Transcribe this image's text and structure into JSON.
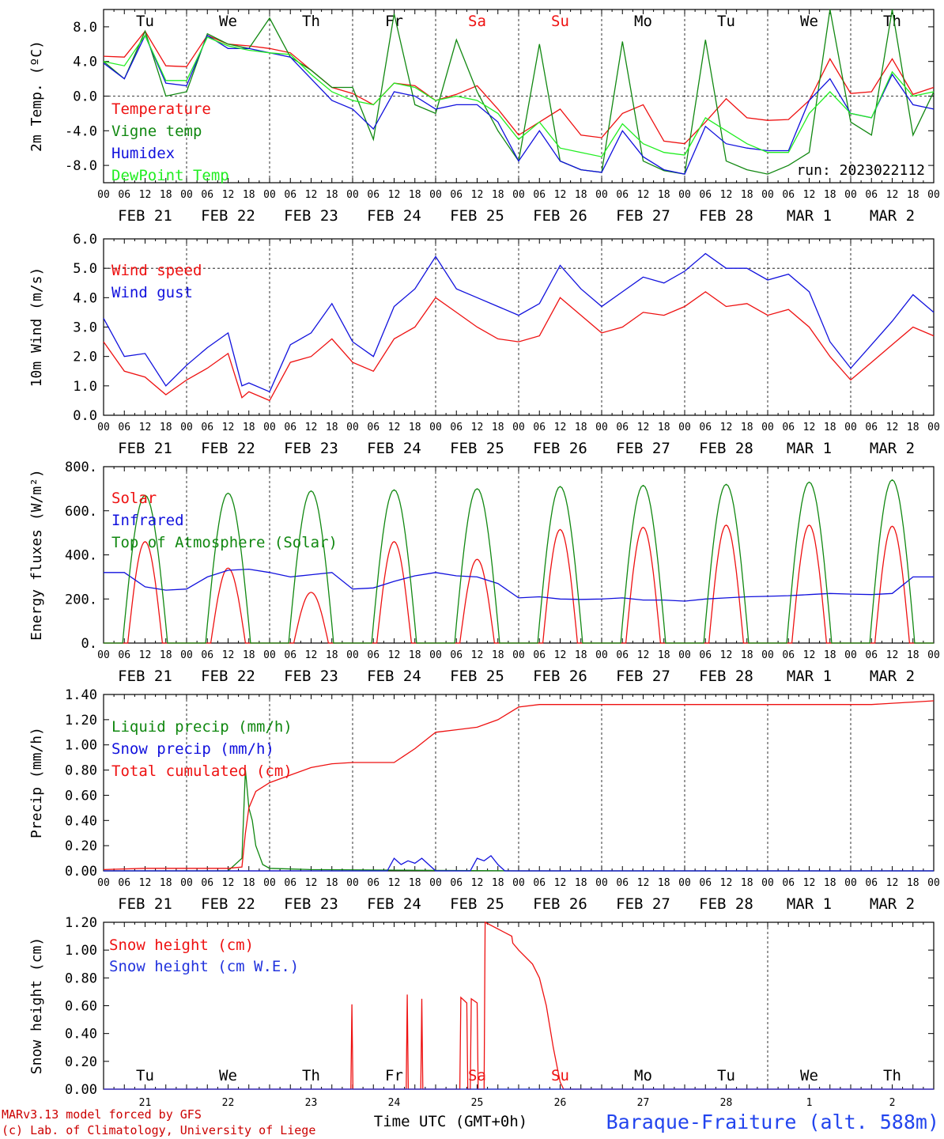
{
  "colors": {
    "temperature": "#ee1111",
    "vigne": "#118811",
    "humidex": "#1111dd",
    "dewpoint": "#22ee22",
    "snow_we": "#2233dd",
    "station": "#2244ee",
    "weekend": "#ee1111",
    "credit": "#cc0000"
  },
  "days": {
    "weekdays": [
      "Tu",
      "We",
      "Th",
      "Fr",
      "Sa",
      "Su",
      "Mo",
      "Tu",
      "We",
      "Th"
    ],
    "weekend_flags": [
      false,
      false,
      false,
      false,
      true,
      true,
      false,
      false,
      false,
      false
    ],
    "dates": [
      "FEB 21",
      "FEB 22",
      "FEB 23",
      "FEB 24",
      "FEB 25",
      "FEB 26",
      "FEB 27",
      "FEB 28",
      "MAR  1",
      "MAR  2"
    ],
    "day_numbers": [
      "21",
      "22",
      "23",
      "24",
      "25",
      "26",
      "27",
      "28",
      "1",
      "2"
    ],
    "hour_ticks": [
      "00",
      "06",
      "12",
      "18"
    ],
    "final_tick": "00"
  },
  "footer": {
    "credit_line1": "MARv3.13 model forced by GFS",
    "credit_line2": "(c) Lab. of Climatology, University of Liege",
    "time_label": "Time UTC (GMT+0h)",
    "station": "Baraque-Fraiture (alt. 588m)"
  },
  "chart_data": [
    {
      "type": "line",
      "x_unit": "hours since FEB 21 00 UTC",
      "ylabel": "2m Temp. (ºC)",
      "ylim": [
        -10,
        10
      ],
      "yticks": [
        -8,
        -4,
        0,
        4,
        8
      ],
      "ytick_labels": [
        "-8.0",
        "-4.0",
        "0.0",
        "4.0",
        "8.0"
      ],
      "reference_line": 0,
      "annotation": "run: 2023022112",
      "series": [
        {
          "name": "Temperature",
          "color": "#ee1111",
          "x": [
            0,
            6,
            12,
            18,
            24,
            30,
            36,
            42,
            48,
            54,
            60,
            66,
            72,
            78,
            84,
            90,
            96,
            102,
            108,
            114,
            120,
            126,
            132,
            138,
            144,
            150,
            156,
            162,
            168,
            174,
            180,
            186,
            192,
            198,
            204,
            210,
            216,
            222,
            228,
            234,
            240
          ],
          "y": [
            4.6,
            4.5,
            7.5,
            3.5,
            3.4,
            7.0,
            6.0,
            5.8,
            5.5,
            5.0,
            3.0,
            1.0,
            0.3,
            -1.0,
            1.5,
            1.2,
            -0.5,
            0.2,
            1.2,
            -1.5,
            -4.5,
            -3.0,
            -1.5,
            -4.5,
            -4.8,
            -2.0,
            -1.0,
            -5.2,
            -5.5,
            -3.0,
            -0.3,
            -2.5,
            -2.8,
            -2.7,
            -0.5,
            4.3,
            0.3,
            0.5,
            4.3,
            0.2,
            1.0
          ]
        },
        {
          "name": "Vigne temp",
          "color": "#118811",
          "x": [
            0,
            6,
            12,
            18,
            24,
            30,
            36,
            42,
            48,
            54,
            60,
            66,
            72,
            78,
            84,
            90,
            96,
            102,
            108,
            114,
            120,
            126,
            132,
            138,
            144,
            150,
            156,
            162,
            168,
            174,
            180,
            186,
            192,
            198,
            204,
            210,
            216,
            222,
            228,
            234,
            240
          ],
          "y": [
            4.0,
            2.0,
            7.5,
            0.0,
            0.5,
            7.2,
            6.0,
            5.5,
            9.0,
            4.5,
            3.0,
            1.0,
            1.0,
            -5.0,
            9.5,
            -1.0,
            -2.0,
            6.5,
            0.5,
            -4.0,
            -7.5,
            6.0,
            -7.5,
            -8.5,
            -8.8,
            6.3,
            -7.5,
            -8.6,
            -9.0,
            6.5,
            -7.5,
            -8.5,
            -9.0,
            -8.0,
            -6.5,
            10.0,
            -3.0,
            -4.5,
            10.0,
            -4.5,
            0.5
          ]
        },
        {
          "name": "Humidex",
          "color": "#1111dd",
          "x": [
            0,
            6,
            12,
            18,
            24,
            30,
            36,
            42,
            48,
            54,
            60,
            66,
            72,
            78,
            84,
            90,
            96,
            102,
            108,
            114,
            120,
            126,
            132,
            138,
            144,
            150,
            156,
            162,
            168,
            174,
            180,
            186,
            192,
            198,
            204,
            210,
            216,
            222,
            228,
            234,
            240
          ],
          "y": [
            3.8,
            2.0,
            7.0,
            1.5,
            1.2,
            7.0,
            5.5,
            5.5,
            5.0,
            4.5,
            2.0,
            -0.5,
            -1.5,
            -3.8,
            0.5,
            0.0,
            -1.5,
            -1.0,
            -1.0,
            -3.0,
            -7.5,
            -4.0,
            -7.5,
            -8.5,
            -8.8,
            -4.0,
            -7.0,
            -8.5,
            -9.0,
            -3.5,
            -5.5,
            -6.0,
            -6.3,
            -6.3,
            -0.5,
            2.0,
            -2.0,
            -2.5,
            2.5,
            -1.0,
            -1.5
          ]
        },
        {
          "name": "DewPoint Temp",
          "color": "#22ee22",
          "x": [
            0,
            6,
            12,
            18,
            24,
            30,
            36,
            42,
            48,
            54,
            60,
            66,
            72,
            78,
            84,
            90,
            96,
            102,
            108,
            114,
            120,
            126,
            132,
            138,
            144,
            150,
            156,
            162,
            168,
            174,
            180,
            186,
            192,
            198,
            204,
            210,
            216,
            222,
            228,
            234,
            240
          ],
          "y": [
            4.0,
            3.5,
            7.0,
            1.8,
            1.8,
            6.8,
            5.8,
            5.3,
            5.0,
            4.8,
            2.5,
            0.5,
            -0.5,
            -1.0,
            1.5,
            1.0,
            -0.5,
            0.0,
            -0.5,
            -2.0,
            -5.0,
            -3.0,
            -6.0,
            -6.5,
            -7.0,
            -3.2,
            -5.5,
            -6.5,
            -6.8,
            -2.5,
            -4.0,
            -5.5,
            -6.5,
            -6.5,
            -2.0,
            0.5,
            -2.0,
            -2.5,
            2.8,
            0.0,
            0.5
          ]
        }
      ]
    },
    {
      "type": "line",
      "x_unit": "hours since FEB 21 00 UTC",
      "ylabel": "10m Wind (m/s)",
      "ylim": [
        0,
        6
      ],
      "yticks": [
        0,
        1,
        2,
        3,
        4,
        5,
        6
      ],
      "ytick_labels": [
        "0.0",
        "1.0",
        "2.0",
        "3.0",
        "4.0",
        "5.0",
        "6.0"
      ],
      "reference_line": 5,
      "series": [
        {
          "name": "Wind speed",
          "color": "#ee1111",
          "x": [
            0,
            6,
            12,
            18,
            24,
            30,
            36,
            40,
            42,
            48,
            54,
            60,
            66,
            72,
            78,
            84,
            90,
            96,
            102,
            108,
            114,
            120,
            126,
            132,
            138,
            144,
            150,
            156,
            162,
            168,
            174,
            180,
            186,
            192,
            198,
            204,
            210,
            216,
            222,
            228,
            234,
            240
          ],
          "y": [
            2.5,
            1.5,
            1.3,
            0.7,
            1.2,
            1.6,
            2.1,
            0.6,
            0.8,
            0.5,
            1.8,
            2.0,
            2.6,
            1.8,
            1.5,
            2.6,
            3.0,
            4.0,
            3.5,
            3.0,
            2.6,
            2.5,
            2.7,
            4.0,
            3.4,
            2.8,
            3.0,
            3.5,
            3.4,
            3.7,
            4.2,
            3.7,
            3.8,
            3.4,
            3.6,
            3.0,
            2.0,
            1.2,
            1.8,
            2.4,
            3.0,
            2.7
          ]
        },
        {
          "name": "Wind gust",
          "color": "#1111dd",
          "x": [
            0,
            6,
            12,
            18,
            24,
            30,
            36,
            40,
            42,
            48,
            54,
            60,
            66,
            72,
            78,
            84,
            90,
            96,
            102,
            108,
            114,
            120,
            126,
            132,
            138,
            144,
            150,
            156,
            162,
            168,
            174,
            180,
            186,
            192,
            198,
            204,
            210,
            216,
            222,
            228,
            234,
            240
          ],
          "y": [
            3.3,
            2.0,
            2.1,
            1.0,
            1.7,
            2.3,
            2.8,
            1.0,
            1.1,
            0.8,
            2.4,
            2.8,
            3.8,
            2.5,
            2.0,
            3.7,
            4.3,
            5.4,
            4.3,
            4.0,
            3.7,
            3.4,
            3.8,
            5.1,
            4.3,
            3.7,
            4.2,
            4.7,
            4.5,
            4.9,
            5.5,
            5.0,
            5.0,
            4.6,
            4.8,
            4.2,
            2.5,
            1.6,
            2.4,
            3.2,
            4.1,
            3.5
          ]
        }
      ]
    },
    {
      "type": "line",
      "x_unit": "hours since FEB 21 00 UTC",
      "ylabel": "Energy fluxes (W/m²)",
      "ylim": [
        0,
        800
      ],
      "yticks": [
        0,
        200,
        400,
        600,
        800
      ],
      "ytick_labels": [
        "0.",
        "200.",
        "400.",
        "600.",
        "800."
      ],
      "series": [
        {
          "name": "Solar",
          "color": "#ee1111",
          "peak_hour": 12,
          "peaks": [
            460,
            340,
            230,
            460,
            380,
            515,
            525,
            535,
            535,
            530
          ]
        },
        {
          "name": "Infrared",
          "color": "#1111dd",
          "x": [
            0,
            6,
            12,
            18,
            24,
            30,
            36,
            42,
            48,
            54,
            60,
            66,
            72,
            78,
            84,
            90,
            96,
            102,
            108,
            114,
            120,
            126,
            132,
            138,
            144,
            150,
            156,
            162,
            168,
            174,
            180,
            186,
            192,
            198,
            204,
            210,
            216,
            222,
            228,
            234,
            240
          ],
          "y": [
            320,
            320,
            255,
            240,
            245,
            300,
            330,
            335,
            320,
            300,
            310,
            320,
            245,
            250,
            280,
            305,
            320,
            305,
            300,
            270,
            205,
            210,
            200,
            198,
            200,
            205,
            195,
            195,
            190,
            200,
            205,
            210,
            212,
            215,
            220,
            225,
            222,
            220,
            225,
            300,
            300
          ]
        },
        {
          "name": "Top of Atmosphere (Solar)",
          "color": "#118811",
          "peak_hour": 12,
          "peaks": [
            670,
            680,
            690,
            695,
            700,
            710,
            715,
            720,
            730,
            740
          ]
        }
      ]
    },
    {
      "type": "line",
      "x_unit": "hours since FEB 21 00 UTC",
      "ylabel": "Precip (mm/h)",
      "ylim": [
        0,
        1.4
      ],
      "yticks": [
        0,
        0.2,
        0.4,
        0.6,
        0.8,
        1.0,
        1.2,
        1.4
      ],
      "ytick_labels": [
        "0.00",
        "0.20",
        "0.40",
        "0.60",
        "0.80",
        "1.00",
        "1.20",
        "1.40"
      ],
      "series": [
        {
          "name": "Liquid precip (mm/h)",
          "color": "#118811",
          "x": [
            0,
            36,
            40,
            41,
            42,
            43,
            44,
            46,
            48,
            60,
            120,
            240
          ],
          "y": [
            0.0,
            0.0,
            0.1,
            0.8,
            0.5,
            0.4,
            0.2,
            0.05,
            0.02,
            0.01,
            0.0,
            0.0
          ]
        },
        {
          "name": "Snow precip (mm/h)",
          "color": "#1111dd",
          "x": [
            0,
            82,
            84,
            86,
            88,
            90,
            92,
            96,
            106,
            108,
            110,
            112,
            114,
            116,
            120,
            240
          ],
          "y": [
            0.0,
            0.0,
            0.1,
            0.05,
            0.08,
            0.06,
            0.1,
            0.0,
            0.0,
            0.1,
            0.08,
            0.12,
            0.05,
            0.0,
            0.0,
            0.0
          ]
        },
        {
          "name": "Total cumulated (cm)",
          "color": "#ee1111",
          "x": [
            0,
            12,
            24,
            36,
            40,
            41,
            42,
            44,
            48,
            54,
            60,
            66,
            72,
            78,
            84,
            90,
            96,
            102,
            108,
            114,
            120,
            126,
            132,
            138,
            144,
            150,
            156,
            162,
            168,
            174,
            180,
            186,
            192,
            198,
            204,
            210,
            216,
            222,
            228,
            234,
            240
          ],
          "y": [
            0.01,
            0.02,
            0.02,
            0.02,
            0.03,
            0.3,
            0.5,
            0.63,
            0.7,
            0.76,
            0.82,
            0.85,
            0.86,
            0.86,
            0.86,
            0.97,
            1.1,
            1.12,
            1.14,
            1.2,
            1.3,
            1.32,
            1.32,
            1.32,
            1.32,
            1.32,
            1.32,
            1.32,
            1.32,
            1.32,
            1.32,
            1.32,
            1.32,
            1.32,
            1.32,
            1.32,
            1.32,
            1.32,
            1.33,
            1.34,
            1.35
          ]
        }
      ]
    },
    {
      "type": "line",
      "x_unit": "hours since FEB 21 00 UTC",
      "ylabel": "Snow height (cm)",
      "ylim": [
        0,
        1.2
      ],
      "yticks": [
        0,
        0.2,
        0.4,
        0.6,
        0.8,
        1.0,
        1.2
      ],
      "ytick_labels": [
        "0.00",
        "0.20",
        "0.40",
        "0.60",
        "0.80",
        "1.00",
        "1.20"
      ],
      "series": [
        {
          "name": "Snow height (cm)",
          "color": "#ee1111",
          "x": [
            0,
            71.5,
            71.8,
            72.1,
            87.5,
            87.8,
            88.1,
            91.7,
            92.0,
            92.3,
            103,
            103.3,
            105,
            105.3,
            106,
            106.3,
            108,
            108.3,
            110,
            110.3,
            118,
            118.3,
            120,
            124,
            126,
            128,
            130,
            132,
            133,
            133.3,
            240
          ],
          "y": [
            0,
            0,
            0.61,
            0,
            0,
            0.68,
            0,
            0,
            0.65,
            0,
            0,
            0.66,
            0.62,
            0,
            0,
            0.65,
            0.62,
            0,
            0,
            1.2,
            1.1,
            1.05,
            1.0,
            0.9,
            0.8,
            0.6,
            0.3,
            0.05,
            0,
            0,
            0
          ]
        },
        {
          "name": "Snow height (cm W.E.)",
          "color": "#2233dd",
          "x": [
            0,
            240
          ],
          "y": [
            0,
            0
          ]
        }
      ]
    }
  ]
}
